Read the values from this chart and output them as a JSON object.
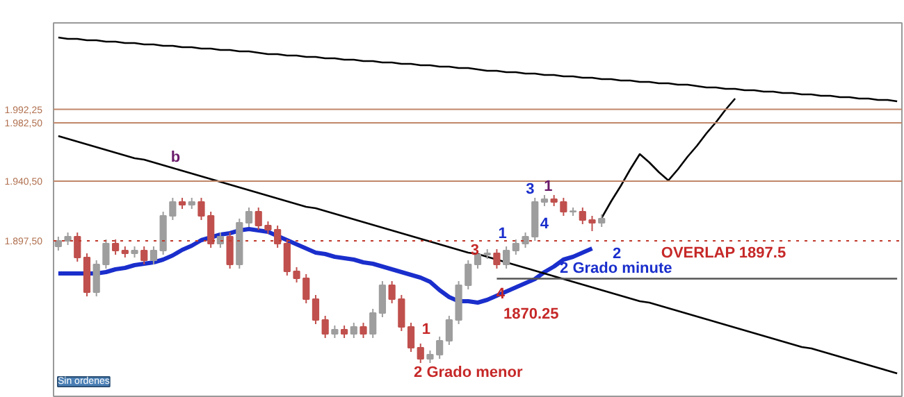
{
  "chart_data": {
    "type": "candlestick",
    "categories": [
      null,
      null,
      null,
      null,
      null,
      null,
      null,
      null,
      null,
      null,
      null,
      null,
      null,
      null,
      null,
      null,
      null,
      null,
      null,
      null,
      null,
      null,
      null,
      null,
      null,
      null,
      null,
      null,
      null,
      null,
      null,
      null,
      null,
      null,
      null,
      null,
      null,
      null,
      null,
      null,
      null,
      null,
      null,
      null,
      null,
      null,
      null,
      null,
      null,
      null,
      null,
      null,
      null,
      null,
      null,
      null,
      null,
      null,
      null,
      null,
      null,
      null,
      null,
      null,
      null,
      null,
      null,
      null,
      null,
      null,
      null,
      null,
      null,
      null,
      null,
      null,
      null,
      null,
      null,
      null,
      null,
      null,
      null,
      null,
      null,
      null,
      null,
      null,
      null
    ],
    "ohlc": [
      [
        1893.5,
        1900.5,
        1890.5,
        1897.5
      ],
      [
        1897.5,
        1903.5,
        1894.5,
        1900.5
      ],
      [
        1900.5,
        1903.5,
        1882.5,
        1885.5
      ],
      [
        1885.5,
        1888.5,
        1857.5,
        1860.5
      ],
      [
        1860.5,
        1883.5,
        1857.5,
        1880.5
      ],
      [
        1880.5,
        1898.5,
        1877.5,
        1895.5
      ],
      [
        1895.5,
        1898.5,
        1887.5,
        1890.5
      ],
      [
        1890.5,
        1893.5,
        1885.5,
        1888.5
      ],
      [
        1888.5,
        1893.5,
        1885.5,
        1890.5
      ],
      [
        1890.5,
        1893.5,
        1880.5,
        1883.5
      ],
      [
        1883.5,
        1893.5,
        1880.5,
        1890.5
      ],
      [
        1890.5,
        1918.5,
        1887.5,
        1915.5
      ],
      [
        1915.5,
        1928.5,
        1912.5,
        1925.5
      ],
      [
        1925.5,
        1928.5,
        1920.5,
        1923.5
      ],
      [
        1923.5,
        1928.5,
        1920.5,
        1925.5
      ],
      [
        1925.5,
        1928.5,
        1912.5,
        1915.5
      ],
      [
        1915.5,
        1918.5,
        1892.5,
        1895.5
      ],
      [
        1895.5,
        1903.5,
        1892.5,
        1900.5
      ],
      [
        1900.5,
        1903.5,
        1877.5,
        1880.5
      ],
      [
        1880.5,
        1913.5,
        1877.5,
        1910.5
      ],
      [
        1910.5,
        1921.5,
        1907.5,
        1918.5
      ],
      [
        1918.5,
        1921.5,
        1905.5,
        1908.5
      ],
      [
        1908.5,
        1911.5,
        1902.5,
        1905.5
      ],
      [
        1905.5,
        1908.5,
        1892.5,
        1895.5
      ],
      [
        1895.5,
        1898.5,
        1872.5,
        1875.5
      ],
      [
        1875.5,
        1878.5,
        1867.5,
        1870.5
      ],
      [
        1870.5,
        1873.5,
        1852.5,
        1855.5
      ],
      [
        1855.5,
        1858.5,
        1837.5,
        1840.5
      ],
      [
        1840.5,
        1843.5,
        1827.5,
        1830.5
      ],
      [
        1830.5,
        1836.5,
        1827.5,
        1833.5
      ],
      [
        1833.5,
        1836.5,
        1827.5,
        1830.5
      ],
      [
        1830.5,
        1838.5,
        1827.5,
        1835.5
      ],
      [
        1835.5,
        1838.5,
        1827.5,
        1830.5
      ],
      [
        1830.5,
        1848.5,
        1827.5,
        1845.5
      ],
      [
        1845.5,
        1868.5,
        1842.5,
        1865.5
      ],
      [
        1865.5,
        1868.5,
        1852.5,
        1855.5
      ],
      [
        1855.5,
        1858.5,
        1832.5,
        1835.5
      ],
      [
        1835.5,
        1838.5,
        1817.5,
        1820.5
      ],
      [
        1820.5,
        1823.5,
        1809.5,
        1812.5
      ],
      [
        1812.5,
        1818.5,
        1809.5,
        1815.5
      ],
      [
        1815.5,
        1828.5,
        1812.5,
        1825.5
      ],
      [
        1825.5,
        1843.5,
        1822.5,
        1840.5
      ],
      [
        1840.5,
        1868.5,
        1837.5,
        1865.5
      ],
      [
        1865.5,
        1883.5,
        1862.5,
        1880.5
      ],
      [
        1880.5,
        1890.5,
        1877.5,
        1887.5
      ],
      [
        1887.5,
        1891.5,
        1884.5,
        1888.5
      ],
      [
        1888.5,
        1891.5,
        1877.5,
        1880.5
      ],
      [
        1880.5,
        1893.5,
        1877.5,
        1890.5
      ],
      [
        1890.5,
        1898.5,
        1887.5,
        1895.5
      ],
      [
        1895.5,
        1903.5,
        1892.5,
        1900.5
      ],
      [
        1900.5,
        1928.5,
        1897.5,
        1925.5
      ],
      [
        1925.5,
        1930.5,
        1922.5,
        1927.5
      ],
      [
        1927.5,
        1930.5,
        1922.5,
        1925.5
      ],
      [
        1925.5,
        1928.5,
        1915.5,
        1918.5
      ],
      [
        1918.5,
        1921.5,
        1915.5,
        1918.5
      ],
      [
        1918.5,
        1921.5,
        1909.5,
        1912.5
      ],
      [
        1912.5,
        1915.5,
        1904.5,
        1910.5
      ],
      [
        1910.5,
        1916.5,
        1907.5,
        1913.5
      ],
      null,
      null,
      null,
      null,
      null,
      null,
      null,
      null,
      null,
      null,
      null,
      null,
      null,
      null,
      null,
      null,
      null,
      null,
      null,
      null,
      null,
      null,
      null,
      null,
      null,
      null,
      null,
      null,
      null,
      null,
      null
    ],
    "series": [
      {
        "type": "line",
        "color": "#1a2ecc",
        "values": [
          1874,
          1874,
          1874,
          1874,
          1874,
          1875,
          1877,
          1878,
          1880,
          1881,
          1882,
          1884,
          1887,
          1891,
          1894,
          1898,
          1900,
          1902,
          1903,
          1905,
          1906,
          1905,
          1904,
          1901,
          1898,
          1895,
          1892,
          1889,
          1888,
          1886,
          1885,
          1884,
          1882,
          1881,
          1879,
          1877,
          1875,
          1873,
          1871,
          1868,
          1862,
          1857,
          1854,
          1854,
          1853,
          1855,
          1858,
          1861,
          1864,
          1867,
          1870,
          1875,
          1879,
          1884,
          1886,
          1889,
          1892,
          null,
          null,
          null,
          null,
          null,
          null,
          null,
          null,
          null,
          null,
          null,
          null,
          null,
          null,
          null,
          null,
          null,
          null,
          null,
          null,
          null,
          null,
          null,
          null,
          null,
          null,
          null,
          null,
          null,
          null,
          null,
          null
        ]
      },
      {
        "type": "line",
        "color": "#000000",
        "values": [
          2044,
          2043,
          2043,
          2042,
          2042,
          2041,
          2041,
          2040,
          2040,
          2039,
          2039,
          2038,
          2038,
          2037,
          2037,
          2036,
          2036,
          2035,
          2035,
          2034,
          2034,
          2033,
          2032,
          2032,
          2031,
          2031,
          2030,
          2030,
          2029,
          2029,
          2028,
          2028,
          2027,
          2027,
          2026,
          2026,
          2025,
          2025,
          2024,
          2024,
          2023,
          2023,
          2022,
          2022,
          2021,
          2020,
          2020,
          2019,
          2019,
          2018,
          2018,
          2017,
          2017,
          2016,
          2016,
          2015,
          2015,
          2014,
          2014,
          2013,
          2013,
          2012,
          2012,
          2011,
          2011,
          2010,
          2010,
          2009,
          2008,
          2008,
          2007,
          2007,
          2006,
          2006,
          2005,
          2005,
          2004,
          2004,
          2003,
          2003,
          2002,
          2002,
          2001,
          2001,
          2000,
          2000,
          1999,
          1999,
          1998
        ]
      },
      {
        "type": "line",
        "color": "#000000",
        "values": [
          1973,
          1971,
          1969,
          1967,
          1965,
          1963,
          1961,
          1959,
          1957,
          1956,
          1954,
          1952,
          1950,
          1948,
          1946,
          1944,
          1942,
          1940,
          1938,
          1936,
          1934,
          1932,
          1930,
          1928,
          1926,
          1924,
          1922,
          1921,
          1919,
          1917,
          1915,
          1913,
          1911,
          1909,
          1907,
          1905,
          1903,
          1901,
          1899,
          1897,
          1895,
          1893,
          1891,
          1889,
          1888,
          1886,
          1884,
          1882,
          1880,
          1878,
          1876,
          1874,
          1872,
          1870,
          1868,
          1866,
          1864,
          1862,
          1860,
          1858,
          1856,
          1854,
          1853,
          1851,
          1849,
          1847,
          1845,
          1843,
          1841,
          1839,
          1837,
          1835,
          1833,
          1831,
          1829,
          1827,
          1825,
          1823,
          1821,
          1820,
          1818,
          1816,
          1814,
          1812,
          1810,
          1808,
          1806,
          1804,
          1802
        ]
      },
      {
        "type": "line",
        "color": "#000000",
        "values": [
          null,
          null,
          null,
          null,
          null,
          null,
          null,
          null,
          null,
          null,
          null,
          null,
          null,
          null,
          null,
          null,
          null,
          null,
          null,
          null,
          null,
          null,
          null,
          null,
          null,
          null,
          null,
          null,
          null,
          null,
          null,
          null,
          null,
          null,
          null,
          null,
          null,
          null,
          null,
          null,
          null,
          null,
          null,
          null,
          null,
          null,
          null,
          null,
          null,
          null,
          null,
          null,
          null,
          null,
          null,
          null,
          null,
          1914,
          1926,
          1937,
          1949,
          1960,
          1954,
          1947,
          1941,
          1949,
          1958,
          1966,
          1975,
          1983,
          1992,
          2000,
          null,
          null,
          null,
          null,
          null,
          null,
          null,
          null,
          null,
          null,
          null,
          null,
          null,
          null,
          null,
          null,
          null
        ]
      },
      {
        "type": "line",
        "color": "#555555",
        "values": [
          null,
          null,
          null,
          null,
          null,
          null,
          null,
          null,
          null,
          null,
          null,
          null,
          null,
          null,
          null,
          null,
          null,
          null,
          null,
          null,
          null,
          null,
          null,
          null,
          null,
          null,
          null,
          null,
          null,
          null,
          null,
          null,
          null,
          null,
          null,
          null,
          null,
          null,
          null,
          null,
          null,
          null,
          null,
          null,
          null,
          null,
          1870.25,
          1870.25,
          1870.25,
          1870.25,
          1870.25,
          1870.25,
          1870.25,
          1870.25,
          1870.25,
          1870.25,
          1870.25,
          1870.25,
          1870.25,
          1870.25,
          1870.25,
          1870.25,
          1870.25,
          1870.25,
          1870.25,
          1870.25,
          1870.25,
          1870.25,
          1870.25,
          1870.25,
          1870.25,
          1870.25,
          1870.25,
          1870.25,
          1870.25,
          1870.25,
          1870.25,
          1870.25,
          1870.25,
          1870.25,
          1870.25,
          1870.25,
          1870.25,
          1870.25,
          1870.25,
          1870.25,
          1870.25,
          1870.25,
          1870.25
        ]
      }
    ],
    "ylim": [
      1784.5,
      2054.5
    ],
    "tick_labels": "y",
    "yticks": [
      {
        "value": 1897.5,
        "label": "1.897,50"
      },
      {
        "value": 1940.5,
        "label": "1.940,50"
      },
      {
        "value": 1982.5,
        "label": "1.982,50"
      },
      {
        "value": 1992.25,
        "label": "1.992,25"
      }
    ],
    "ref_lines": [
      {
        "axis": "y",
        "value": 1992.25,
        "color": "#c0876a",
        "line_style": "solid"
      },
      {
        "axis": "y",
        "value": 1982.5,
        "color": "#c0876a",
        "line_style": "solid"
      },
      {
        "axis": "y",
        "value": 1940.5,
        "color": "#c0876a",
        "line_style": "solid"
      },
      {
        "axis": "y",
        "value": 1897.5,
        "color": "#c0392b",
        "line_style": "dotted"
      }
    ],
    "annotations": [
      "b",
      "1",
      "2 Grado menor",
      "3",
      "4",
      "1870.25",
      "2 Grado minute",
      "1",
      "3",
      "1",
      "4",
      "2",
      "OVERLAP 1897.5",
      "Sin ordenes"
    ]
  }
}
